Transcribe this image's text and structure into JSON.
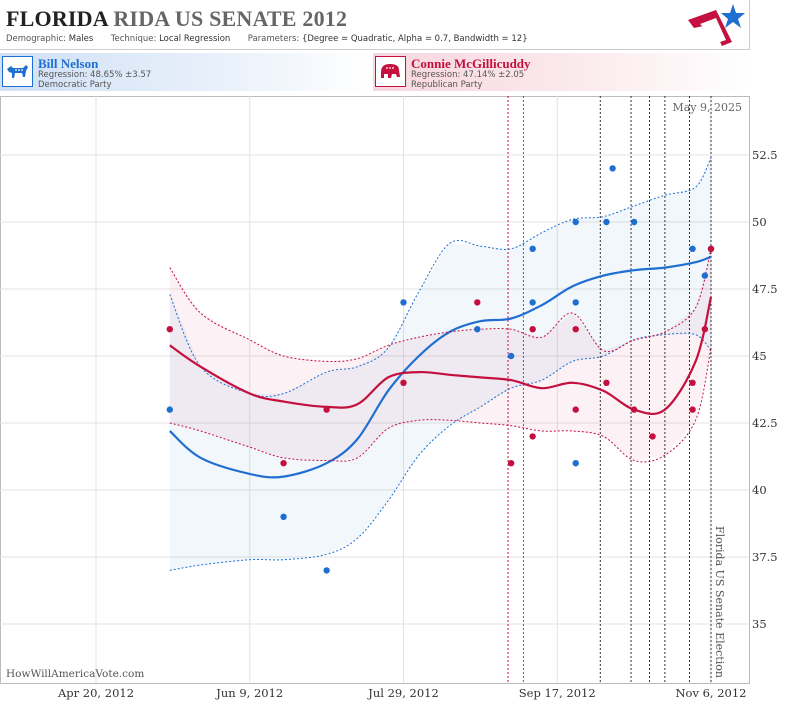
{
  "header": {
    "title_main": "FLORIDA",
    "title_rest": "RIDA US SENATE 2012",
    "demographic_label": "Demographic:",
    "demographic_value": "Males",
    "technique_label": "Technique:",
    "technique_value": "Local Regression",
    "parameters_label": "Parameters:",
    "parameters_value": "{Degree = Quadratic, Alpha = 0.7, Bandwidth = 12}"
  },
  "candidates": {
    "dem": {
      "name": "Bill Nelson",
      "regression": "Regression: 48.65% ±3.57",
      "party": "Democratic Party",
      "color": "#1f6fd1"
    },
    "rep": {
      "name": "Connie McGillicuddy",
      "regression": "Regression: 47.14% ±2.05",
      "party": "Republican Party",
      "color": "#c4103f"
    }
  },
  "footer": {
    "credit": "HowWillAmericaVote.com",
    "date_stamp": "May 9, 2025",
    "election_label": "Florida US Senate Election"
  },
  "chart_data": {
    "type": "line",
    "x_ticks": [
      {
        "label": "Apr 20, 2012",
        "date": "2012-04-20"
      },
      {
        "label": "Jun 9, 2012",
        "date": "2012-06-09"
      },
      {
        "label": "Jul 29, 2012",
        "date": "2012-07-29"
      },
      {
        "label": "Sep 17, 2012",
        "date": "2012-09-17"
      },
      {
        "label": "Nov 6, 2012",
        "date": "2012-11-06"
      }
    ],
    "y_ticks": [
      35,
      37.5,
      40,
      42.5,
      45,
      47.5,
      50,
      52.5
    ],
    "xlim": [
      "2012-03-20",
      "2012-11-06"
    ],
    "ylim": [
      33.4,
      54.8
    ],
    "grid": true,
    "vlines": [
      {
        "date": "2012-09-01",
        "color": "#c4103f"
      },
      {
        "date": "2012-09-06",
        "color": "#1f6fd1"
      },
      {
        "date": "2012-10-01",
        "color": "#333333"
      },
      {
        "date": "2012-10-11",
        "color": "#333333"
      },
      {
        "date": "2012-10-17",
        "color": "#333333"
      },
      {
        "date": "2012-10-22",
        "color": "#333333"
      },
      {
        "date": "2012-10-30",
        "color": "#333333"
      },
      {
        "date": "2012-11-06",
        "color": "#333333"
      }
    ],
    "series": [
      {
        "name": "Bill Nelson",
        "color": "#1f6fd1",
        "points": [
          [
            "2012-05-14",
            43
          ],
          [
            "2012-06-20",
            39
          ],
          [
            "2012-07-04",
            37
          ],
          [
            "2012-07-29",
            47
          ],
          [
            "2012-08-22",
            46
          ],
          [
            "2012-09-02",
            45
          ],
          [
            "2012-09-09",
            49
          ],
          [
            "2012-09-09",
            47
          ],
          [
            "2012-09-23",
            50
          ],
          [
            "2012-09-23",
            47
          ],
          [
            "2012-09-23",
            41
          ],
          [
            "2012-10-03",
            50
          ],
          [
            "2012-10-05",
            52
          ],
          [
            "2012-10-12",
            50
          ],
          [
            "2012-10-31",
            49
          ],
          [
            "2012-11-04",
            48
          ],
          [
            "2012-11-06",
            49
          ]
        ],
        "trend": [
          [
            "2012-05-14",
            42.2
          ],
          [
            "2012-05-24",
            41.2
          ],
          [
            "2012-06-09",
            40.6
          ],
          [
            "2012-06-20",
            40.5
          ],
          [
            "2012-07-04",
            41.0
          ],
          [
            "2012-07-14",
            41.9
          ],
          [
            "2012-07-24",
            43.7
          ],
          [
            "2012-08-03",
            45.0
          ],
          [
            "2012-08-13",
            45.9
          ],
          [
            "2012-08-23",
            46.3
          ],
          [
            "2012-09-02",
            46.4
          ],
          [
            "2012-09-12",
            46.9
          ],
          [
            "2012-09-22",
            47.6
          ],
          [
            "2012-10-02",
            48.0
          ],
          [
            "2012-10-12",
            48.2
          ],
          [
            "2012-10-22",
            48.3
          ],
          [
            "2012-11-01",
            48.5
          ],
          [
            "2012-11-06",
            48.7
          ]
        ],
        "upper": [
          [
            "2012-05-14",
            47.3
          ],
          [
            "2012-05-24",
            44.6
          ],
          [
            "2012-06-09",
            43.6
          ],
          [
            "2012-06-20",
            43.6
          ],
          [
            "2012-07-04",
            44.4
          ],
          [
            "2012-07-14",
            44.6
          ],
          [
            "2012-07-24",
            45.3
          ],
          [
            "2012-08-03",
            47.4
          ],
          [
            "2012-08-13",
            49.2
          ],
          [
            "2012-08-23",
            49.1
          ],
          [
            "2012-09-02",
            49.0
          ],
          [
            "2012-09-12",
            49.6
          ],
          [
            "2012-09-22",
            50.1
          ],
          [
            "2012-10-02",
            50.2
          ],
          [
            "2012-10-12",
            50.6
          ],
          [
            "2012-10-22",
            51.0
          ],
          [
            "2012-11-01",
            51.3
          ],
          [
            "2012-11-06",
            52.4
          ]
        ],
        "lower": [
          [
            "2012-05-14",
            37.0
          ],
          [
            "2012-05-24",
            37.2
          ],
          [
            "2012-06-09",
            37.4
          ],
          [
            "2012-06-20",
            37.4
          ],
          [
            "2012-07-04",
            37.6
          ],
          [
            "2012-07-14",
            38.2
          ],
          [
            "2012-07-24",
            39.6
          ],
          [
            "2012-08-03",
            41.3
          ],
          [
            "2012-08-13",
            42.4
          ],
          [
            "2012-08-23",
            43.1
          ],
          [
            "2012-09-02",
            43.8
          ],
          [
            "2012-09-12",
            44.1
          ],
          [
            "2012-09-22",
            44.8
          ],
          [
            "2012-10-02",
            45.0
          ],
          [
            "2012-10-12",
            45.6
          ],
          [
            "2012-10-22",
            45.8
          ],
          [
            "2012-11-01",
            45.8
          ],
          [
            "2012-11-06",
            45.2
          ]
        ]
      },
      {
        "name": "Connie McGillicuddy",
        "color": "#c4103f",
        "points": [
          [
            "2012-05-14",
            46
          ],
          [
            "2012-06-20",
            41
          ],
          [
            "2012-07-04",
            43
          ],
          [
            "2012-07-29",
            44
          ],
          [
            "2012-08-22",
            47
          ],
          [
            "2012-09-02",
            41
          ],
          [
            "2012-09-09",
            42
          ],
          [
            "2012-09-09",
            46
          ],
          [
            "2012-09-23",
            46
          ],
          [
            "2012-09-23",
            43
          ],
          [
            "2012-10-03",
            44
          ],
          [
            "2012-10-12",
            43
          ],
          [
            "2012-10-18",
            42
          ],
          [
            "2012-10-31",
            44
          ],
          [
            "2012-10-31",
            43
          ],
          [
            "2012-11-04",
            46
          ],
          [
            "2012-11-06",
            49
          ]
        ],
        "trend": [
          [
            "2012-05-14",
            45.4
          ],
          [
            "2012-05-24",
            44.6
          ],
          [
            "2012-06-09",
            43.6
          ],
          [
            "2012-06-20",
            43.3
          ],
          [
            "2012-07-04",
            43.1
          ],
          [
            "2012-07-14",
            43.2
          ],
          [
            "2012-07-24",
            44.2
          ],
          [
            "2012-08-03",
            44.4
          ],
          [
            "2012-08-13",
            44.3
          ],
          [
            "2012-08-23",
            44.2
          ],
          [
            "2012-09-02",
            44.1
          ],
          [
            "2012-09-12",
            43.8
          ],
          [
            "2012-09-22",
            44.0
          ],
          [
            "2012-10-02",
            43.7
          ],
          [
            "2012-10-12",
            43.0
          ],
          [
            "2012-10-22",
            43.0
          ],
          [
            "2012-11-01",
            44.8
          ],
          [
            "2012-11-06",
            47.2
          ]
        ],
        "upper": [
          [
            "2012-05-14",
            48.3
          ],
          [
            "2012-05-24",
            46.6
          ],
          [
            "2012-06-09",
            45.6
          ],
          [
            "2012-06-20",
            45.0
          ],
          [
            "2012-07-04",
            44.8
          ],
          [
            "2012-07-14",
            44.9
          ],
          [
            "2012-07-24",
            45.4
          ],
          [
            "2012-08-03",
            45.7
          ],
          [
            "2012-08-13",
            45.9
          ],
          [
            "2012-08-23",
            46.0
          ],
          [
            "2012-09-02",
            46.0
          ],
          [
            "2012-09-12",
            45.7
          ],
          [
            "2012-09-22",
            46.6
          ],
          [
            "2012-10-02",
            45.2
          ],
          [
            "2012-10-12",
            45.6
          ],
          [
            "2012-10-22",
            45.9
          ],
          [
            "2012-11-01",
            46.8
          ],
          [
            "2012-11-06",
            49.0
          ]
        ],
        "lower": [
          [
            "2012-05-14",
            42.5
          ],
          [
            "2012-05-24",
            42.2
          ],
          [
            "2012-06-09",
            41.6
          ],
          [
            "2012-06-20",
            41.2
          ],
          [
            "2012-07-04",
            41.1
          ],
          [
            "2012-07-14",
            41.2
          ],
          [
            "2012-07-24",
            42.3
          ],
          [
            "2012-08-03",
            42.6
          ],
          [
            "2012-08-13",
            42.6
          ],
          [
            "2012-08-23",
            42.5
          ],
          [
            "2012-09-02",
            42.4
          ],
          [
            "2012-09-12",
            42.2
          ],
          [
            "2012-09-22",
            42.2
          ],
          [
            "2012-10-02",
            42.0
          ],
          [
            "2012-10-12",
            41.1
          ],
          [
            "2012-10-22",
            41.3
          ],
          [
            "2012-11-01",
            42.6
          ],
          [
            "2012-11-06",
            45.3
          ]
        ]
      }
    ]
  }
}
